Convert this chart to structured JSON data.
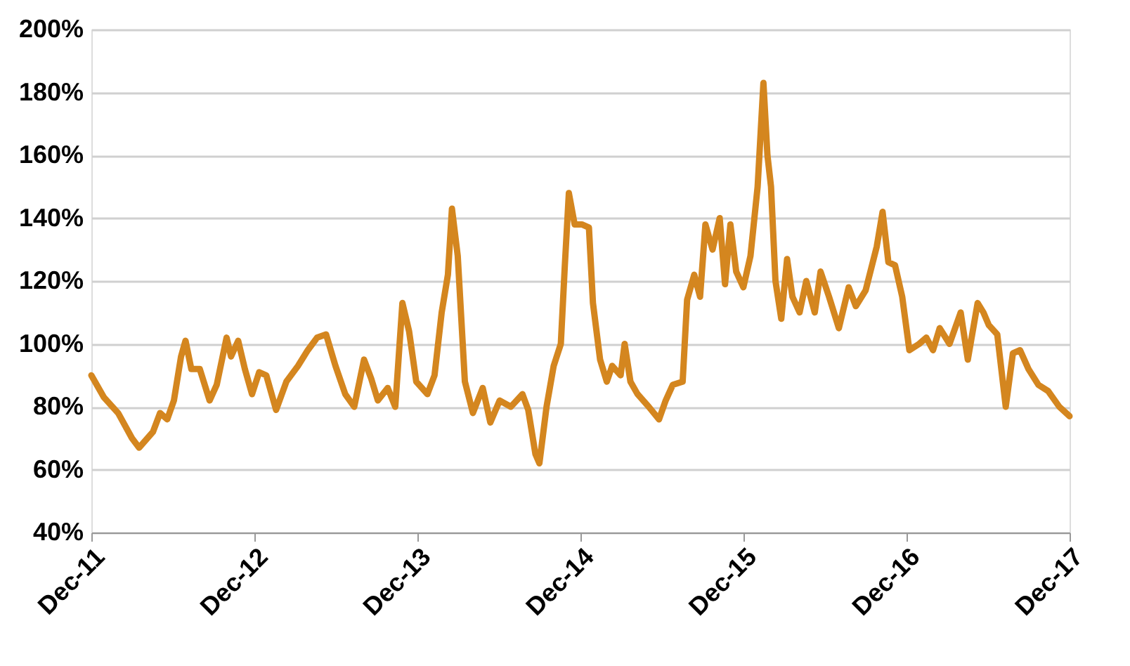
{
  "chart_data": {
    "type": "line",
    "x": [
      "2011-12-31",
      "2012-01-28",
      "2012-02-29",
      "2012-03-31",
      "2012-04-16",
      "2012-05-17",
      "2012-06-02",
      "2012-06-18",
      "2012-07-03",
      "2012-07-19",
      "2012-07-29",
      "2012-08-11",
      "2012-08-30",
      "2012-09-21",
      "2012-10-07",
      "2012-10-29",
      "2012-11-08",
      "2012-11-24",
      "2012-12-09",
      "2012-12-25",
      "2013-01-10",
      "2013-01-26",
      "2013-02-17",
      "2013-03-12",
      "2013-04-07",
      "2013-04-29",
      "2013-05-20",
      "2013-06-09",
      "2013-06-30",
      "2013-07-22",
      "2013-08-11",
      "2013-09-02",
      "2013-09-18",
      "2013-10-03",
      "2013-10-25",
      "2013-11-11",
      "2013-11-27",
      "2013-12-12",
      "2013-12-28",
      "2014-01-22",
      "2014-02-07",
      "2014-02-23",
      "2014-03-09",
      "2014-03-18",
      "2014-03-31",
      "2014-04-16",
      "2014-05-04",
      "2014-05-26",
      "2014-06-12",
      "2014-07-03",
      "2014-07-28",
      "2014-08-23",
      "2014-09-05",
      "2014-09-21",
      "2014-09-30",
      "2014-10-16",
      "2014-11-01",
      "2014-11-17",
      "2014-11-26",
      "2014-12-05",
      "2014-12-18",
      "2015-01-03",
      "2015-01-19",
      "2015-01-28",
      "2015-02-13",
      "2015-02-28",
      "2015-03-12",
      "2015-03-31",
      "2015-04-09",
      "2015-04-22",
      "2015-05-08",
      "2015-06-02",
      "2015-06-25",
      "2015-07-10",
      "2015-07-26",
      "2015-08-17",
      "2015-08-27",
      "2015-09-12",
      "2015-09-25",
      "2015-10-07",
      "2015-10-23",
      "2015-11-08",
      "2015-11-20",
      "2015-12-02",
      "2015-12-15",
      "2015-12-31",
      "2016-01-16",
      "2016-02-01",
      "2016-02-14",
      "2016-02-23",
      "2016-03-02",
      "2016-03-12",
      "2016-03-25",
      "2016-04-07",
      "2016-04-19",
      "2016-05-05",
      "2016-05-20",
      "2016-06-08",
      "2016-06-21",
      "2016-07-10",
      "2016-08-01",
      "2016-08-23",
      "2016-09-08",
      "2016-09-30",
      "2016-10-25",
      "2016-11-07",
      "2016-11-20",
      "2016-12-05",
      "2016-12-21",
      "2017-01-06",
      "2017-01-28",
      "2017-02-13",
      "2017-02-28",
      "2017-03-15",
      "2017-04-06",
      "2017-05-01",
      "2017-05-17",
      "2017-06-08",
      "2017-06-21",
      "2017-07-03",
      "2017-07-22",
      "2017-08-10",
      "2017-08-26",
      "2017-09-11",
      "2017-09-30",
      "2017-10-22",
      "2017-11-13",
      "2017-12-08",
      "2017-12-31"
    ],
    "series": [
      {
        "color": "#d4861f",
        "values": [
          90,
          83,
          78,
          70,
          67,
          72,
          78,
          76,
          82,
          96,
          101,
          92,
          92,
          82,
          87,
          102,
          96,
          101,
          92,
          84,
          91,
          90,
          79,
          88,
          93,
          98,
          102,
          103,
          93,
          84,
          80,
          95,
          89,
          82,
          86,
          80,
          113,
          104,
          88,
          84,
          90,
          110,
          122,
          143,
          128,
          88,
          78,
          86,
          75,
          82,
          80,
          84,
          79,
          65,
          62,
          80,
          93,
          100,
          125,
          148,
          138,
          138,
          137,
          113,
          95,
          88,
          93,
          90,
          100,
          88,
          84,
          80,
          76,
          82,
          87,
          88,
          114,
          122,
          115,
          138,
          130,
          140,
          119,
          138,
          123,
          118,
          128,
          150,
          183,
          160,
          150,
          120,
          108,
          127,
          115,
          110,
          120,
          110,
          123,
          115,
          105,
          118,
          112,
          117,
          131,
          142,
          126,
          125,
          115,
          98,
          100,
          102,
          98,
          105,
          100,
          110,
          95,
          113,
          110,
          106,
          103,
          80,
          97,
          98,
          92,
          87,
          85,
          80,
          77
        ]
      }
    ],
    "xlim": [
      "2011-12-31",
      "2017-12-31"
    ],
    "xticks": [
      {
        "value": "2011-12-31",
        "label": "Dec-11"
      },
      {
        "value": "2012-12-31",
        "label": "Dec-12"
      },
      {
        "value": "2013-12-31",
        "label": "Dec-13"
      },
      {
        "value": "2014-12-31",
        "label": "Dec-14"
      },
      {
        "value": "2015-12-31",
        "label": "Dec-15"
      },
      {
        "value": "2016-12-31",
        "label": "Dec-16"
      },
      {
        "value": "2017-12-31",
        "label": "Dec-17"
      }
    ],
    "ylim": [
      40,
      200
    ],
    "yticks": [
      {
        "value": 40,
        "label": "40%"
      },
      {
        "value": 60,
        "label": "60%"
      },
      {
        "value": 80,
        "label": "80%"
      },
      {
        "value": 100,
        "label": "100%"
      },
      {
        "value": 120,
        "label": "120%"
      },
      {
        "value": 140,
        "label": "140%"
      },
      {
        "value": 160,
        "label": "160%"
      },
      {
        "value": 180,
        "label": "180%"
      },
      {
        "value": 200,
        "label": "200%"
      }
    ],
    "grid": "y",
    "marker": "none",
    "line_style": "solid"
  }
}
